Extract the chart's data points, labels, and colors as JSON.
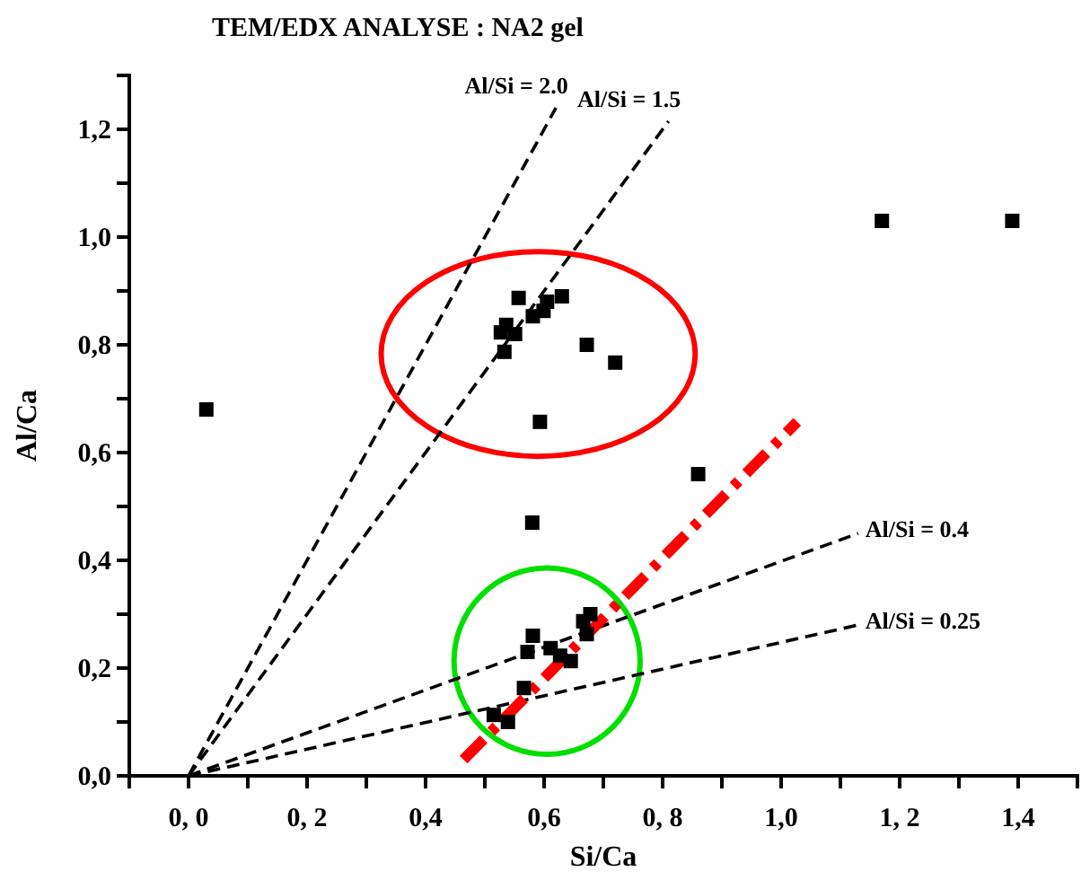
{
  "chart_data": {
    "type": "scatter",
    "title": "TEM/EDX ANALYSE : NA2 gel",
    "xlabel": "Si/Ca",
    "ylabel": "Al/Ca",
    "xlim": [
      -0.1,
      1.5
    ],
    "ylim": [
      0,
      1.3
    ],
    "xticks": [
      {
        "value": 0,
        "label": "0, 0"
      },
      {
        "value": 0.1,
        "label": null
      },
      {
        "value": 0.2,
        "label": "0, 2"
      },
      {
        "value": 0.3,
        "label": null
      },
      {
        "value": 0.4,
        "label": "0,4"
      },
      {
        "value": 0.5,
        "label": null
      },
      {
        "value": 0.6,
        "label": "0,6"
      },
      {
        "value": 0.7,
        "label": null
      },
      {
        "value": 0.8,
        "label": "0, 8"
      },
      {
        "value": 0.9,
        "label": null
      },
      {
        "value": 1.0,
        "label": "1,0"
      },
      {
        "value": 1.1,
        "label": null
      },
      {
        "value": 1.2,
        "label": "1, 2"
      },
      {
        "value": 1.3,
        "label": null
      },
      {
        "value": 1.4,
        "label": "1,4"
      }
    ],
    "yticks": [
      {
        "value": 0,
        "label": "0,0"
      },
      {
        "value": 0.1,
        "label": null
      },
      {
        "value": 0.2,
        "label": "0,2"
      },
      {
        "value": 0.3,
        "label": null
      },
      {
        "value": 0.4,
        "label": "0,4"
      },
      {
        "value": 0.5,
        "label": null
      },
      {
        "value": 0.6,
        "label": "0,6"
      },
      {
        "value": 0.7,
        "label": null
      },
      {
        "value": 0.8,
        "label": "0,8"
      },
      {
        "value": 0.9,
        "label": null
      },
      {
        "value": 1.0,
        "label": "1,0"
      },
      {
        "value": 1.1,
        "label": null
      },
      {
        "value": 1.2,
        "label": "1,2"
      }
    ],
    "grid": false,
    "legend": false,
    "series": [
      {
        "color": "#000000",
        "marker": "square",
        "x": [
          0.03,
          0.58,
          1.17,
          1.39,
          0.86,
          0.557,
          0.63,
          0.605,
          0.599,
          0.581,
          0.536,
          0.527,
          0.551,
          0.533,
          0.672,
          0.72,
          0.593,
          0.678,
          0.666,
          0.581,
          0.572,
          0.611,
          0.627,
          0.645,
          0.672,
          0.566,
          0.515,
          0.539
        ],
        "values": [
          0.68,
          0.47,
          1.03,
          1.03,
          0.56,
          0.887,
          0.89,
          0.88,
          0.863,
          0.853,
          0.837,
          0.823,
          0.82,
          0.787,
          0.8,
          0.767,
          0.657,
          0.3,
          0.287,
          0.26,
          0.23,
          0.237,
          0.223,
          0.213,
          0.263,
          0.163,
          0.113,
          0.1
        ]
      },
      {
        "type": "line",
        "name": "Al/Si = 2.0",
        "color": "#000000",
        "line_style": "dashed",
        "x": [
          0,
          0.62
        ],
        "values": [
          0,
          1.24
        ]
      },
      {
        "type": "line",
        "name": "Al/Si = 1.5",
        "color": "#000000",
        "line_style": "dashed",
        "x": [
          0,
          0.81
        ],
        "values": [
          0,
          1.215
        ]
      },
      {
        "type": "line",
        "name": "Al/Si = 0.4",
        "color": "#000000",
        "line_style": "dashed",
        "x": [
          0,
          1.13
        ],
        "values": [
          0,
          0.45
        ]
      },
      {
        "type": "line",
        "name": "Al/Si = 0.25",
        "color": "#000000",
        "line_style": "dashed",
        "x": [
          0,
          1.13
        ],
        "values": [
          0,
          0.28
        ]
      },
      {
        "type": "line",
        "color": "#ff0000",
        "line_style": "dashdot",
        "x": [
          0.464,
          1.027
        ],
        "values": [
          0.03,
          0.657
        ]
      }
    ]
  }
}
